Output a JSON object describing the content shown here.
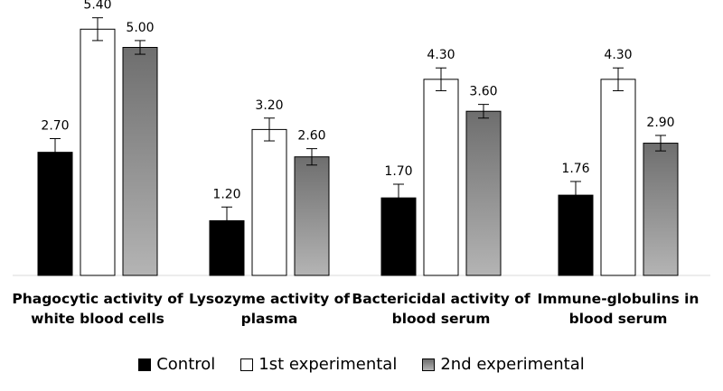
{
  "chart_data": {
    "type": "bar",
    "categories": [
      "Phagocytic activity of\nwhite blood cells",
      "Lysozyme activity of\nplasma",
      "Bactericidal activity of\nblood serum",
      "Immune-globulins in\nblood serum"
    ],
    "series": [
      {
        "name": "Control",
        "values": [
          2.7,
          1.2,
          1.7,
          1.76
        ],
        "errors": [
          0.3,
          0.3,
          0.3,
          0.3
        ],
        "labels": [
          "2.70",
          "1.20",
          "1.70",
          "1.76"
        ],
        "color": "#000000"
      },
      {
        "name": "1st experimental",
        "values": [
          5.4,
          3.2,
          4.3,
          4.3
        ],
        "errors": [
          0.25,
          0.25,
          0.25,
          0.25
        ],
        "labels": [
          "5.40",
          "3.20",
          "4.30",
          "4.30"
        ],
        "color": "#ffffff"
      },
      {
        "name": "2nd experimental",
        "values": [
          5.0,
          2.6,
          3.6,
          2.9
        ],
        "errors": [
          0.15,
          0.18,
          0.15,
          0.17
        ],
        "labels": [
          "5.00",
          "2.60",
          "3.60",
          "2.90"
        ],
        "color": "#909090"
      }
    ],
    "title": "",
    "xlabel": "",
    "ylabel": "",
    "ylim": [
      0,
      6
    ],
    "grid": false,
    "legend": "bottom"
  }
}
